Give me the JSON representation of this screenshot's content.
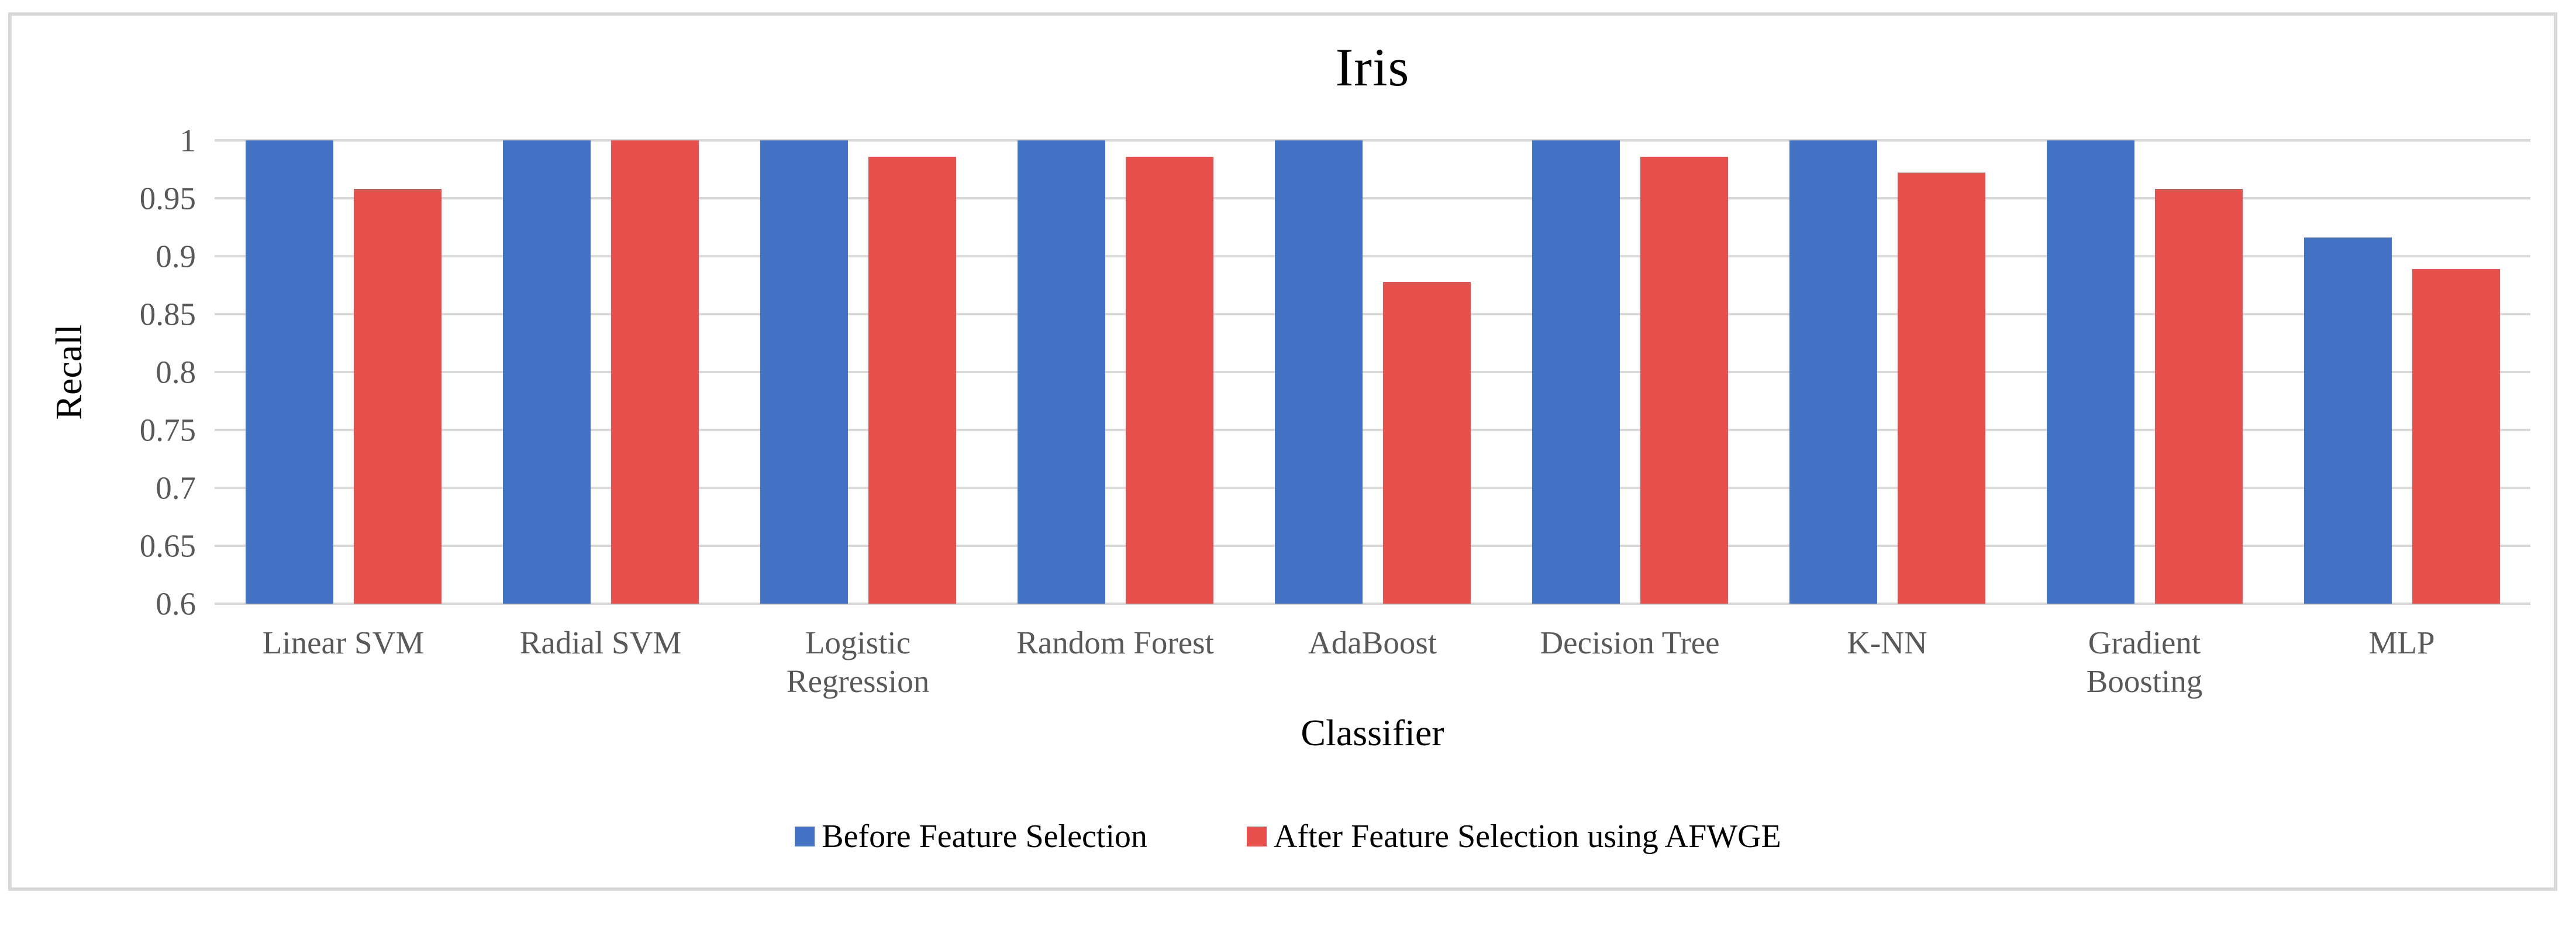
{
  "chart_data": {
    "type": "bar",
    "title": "Iris",
    "xlabel": "Classifier",
    "ylabel": "Recall",
    "ylim": [
      0.6,
      1.0
    ],
    "ytick_labels": [
      "1",
      "0.95",
      "0.9",
      "0.85",
      "0.8",
      "0.75",
      "0.7",
      "0.65",
      "0.6"
    ],
    "grid": true,
    "legend_position": "bottom",
    "categories": [
      "Linear SVM",
      "Radial SVM",
      "Logistic\nRegression",
      "Random Forest",
      "AdaBoost",
      "Decision Tree",
      "K-NN",
      "Gradient\nBoosting",
      "MLP"
    ],
    "series": [
      {
        "name": "Before Feature Selection",
        "color": "#4472C4",
        "values": [
          1.0,
          1.0,
          1.0,
          1.0,
          1.0,
          1.0,
          1.0,
          1.0,
          0.916
        ]
      },
      {
        "name": "After Feature Selection using AFWGE",
        "color": "#E8504E",
        "values": [
          0.958,
          1.0,
          0.986,
          0.986,
          0.878,
          0.986,
          0.972,
          0.958,
          0.889
        ]
      }
    ]
  },
  "colors": {
    "gridline": "#D9D9D9",
    "frame_border": "#D9D9D9",
    "tick_text": "#595959",
    "title_text": "#000000"
  }
}
